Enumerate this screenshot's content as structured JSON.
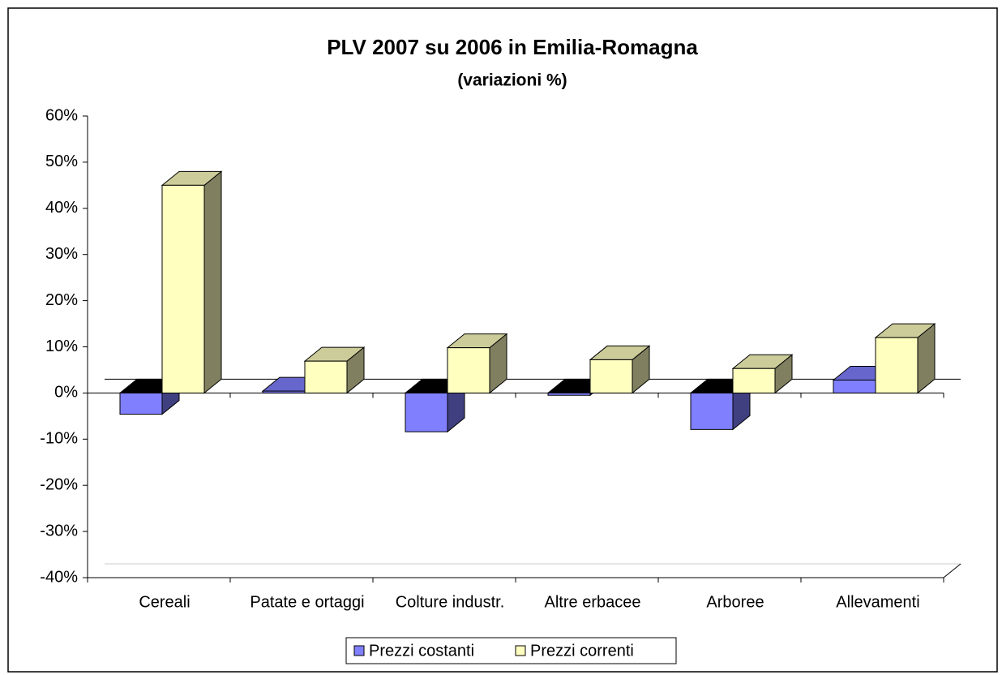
{
  "chart_data": {
    "type": "bar3d",
    "title": "PLV 2007 su 2006 in Emilia-Romagna",
    "subtitle": "(variazioni %)",
    "categories": [
      "Cereali",
      "Patate e ortaggi",
      "Colture industr.",
      "Altre erbacee",
      "Arboree",
      "Allevamenti"
    ],
    "series": [
      {
        "name": "Prezzi costanti",
        "color": "#8080ff",
        "values": [
          -4.6,
          0.4,
          -8.4,
          -0.5,
          -7.9,
          2.8
        ]
      },
      {
        "name": "Prezzi correnti",
        "color": "#ffffc0",
        "values": [
          45.0,
          6.9,
          9.8,
          7.2,
          5.3,
          12.0
        ]
      }
    ],
    "ylim": [
      -40,
      60
    ],
    "yticks": [
      {
        "value": -40,
        "label": "-40%"
      },
      {
        "value": -30,
        "label": "-30%"
      },
      {
        "value": -20,
        "label": "-20%"
      },
      {
        "value": -10,
        "label": "-10%"
      },
      {
        "value": 0,
        "label": "0%"
      },
      {
        "value": 10,
        "label": "10%"
      },
      {
        "value": 20,
        "label": "20%"
      },
      {
        "value": 30,
        "label": "30%"
      },
      {
        "value": 40,
        "label": "40%"
      },
      {
        "value": 50,
        "label": "50%"
      },
      {
        "value": 60,
        "label": "60%"
      }
    ],
    "legend": "bottom"
  }
}
